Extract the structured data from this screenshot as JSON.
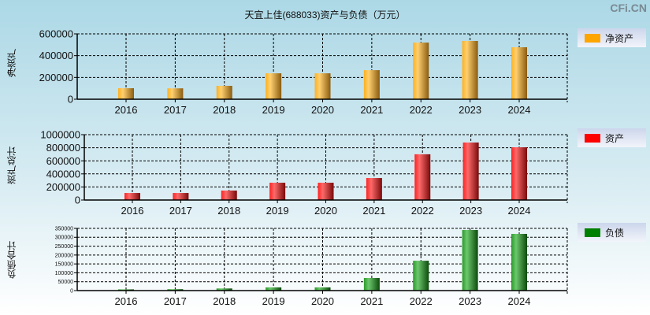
{
  "title": "天宜上佳(688033)资产与负债（万元）",
  "brand": "CFi.CN",
  "chart_data": [
    {
      "type": "bar",
      "ylabel": "净资产",
      "legend": "净资产",
      "color": "#ffa500",
      "categories": [
        "2016",
        "2017",
        "2018",
        "2019",
        "2020",
        "2021",
        "2022",
        "2023",
        "2024"
      ],
      "values": [
        101000,
        100000,
        123000,
        238000,
        238000,
        267000,
        520000,
        535000,
        477000
      ],
      "ylim": [
        0,
        600000
      ],
      "yticks": [
        "0",
        "200000",
        "400000",
        "600000"
      ],
      "grid": true,
      "legend_position": "right"
    },
    {
      "type": "bar",
      "ylabel": "资产总计",
      "legend": "资产",
      "color": "#ff0000",
      "categories": [
        "2016",
        "2017",
        "2018",
        "2019",
        "2020",
        "2021",
        "2022",
        "2023",
        "2024"
      ],
      "values": [
        108000,
        108000,
        145000,
        265000,
        265000,
        337000,
        700000,
        880000,
        807000
      ],
      "ylim": [
        0,
        1000000
      ],
      "yticks": [
        "0",
        "200000",
        "400000",
        "600000",
        "800000",
        "1000000"
      ],
      "grid": true,
      "legend_position": "right"
    },
    {
      "type": "bar",
      "ylabel": "负债合计",
      "legend": "负债",
      "color": "#008000",
      "categories": [
        "2016",
        "2017",
        "2018",
        "2019",
        "2020",
        "2021",
        "2022",
        "2023",
        "2024"
      ],
      "values": [
        7000,
        8000,
        12000,
        18000,
        18000,
        71000,
        168000,
        341000,
        319000
      ],
      "ylim": [
        0,
        350000
      ],
      "yticks": [
        "0",
        "50000",
        "100000",
        "150000",
        "200000",
        "250000",
        "300000",
        "350000"
      ],
      "grid": true,
      "legend_position": "right"
    }
  ]
}
